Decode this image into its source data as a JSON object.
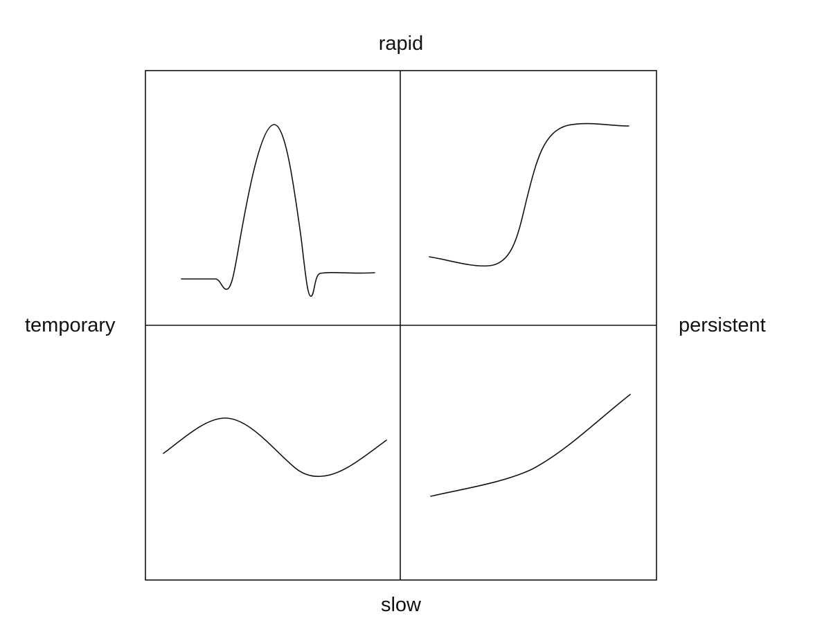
{
  "axes": {
    "top": "rapid",
    "bottom": "slow",
    "left": "temporary",
    "right": "persistent"
  },
  "quadrants": [
    {
      "id": "rapid-temporary",
      "shape": "spike"
    },
    {
      "id": "rapid-persistent",
      "shape": "step-up"
    },
    {
      "id": "slow-temporary",
      "shape": "wave"
    },
    {
      "id": "slow-persistent",
      "shape": "gradual-rise"
    }
  ],
  "colors": {
    "line": "#111111",
    "background": "#ffffff"
  }
}
